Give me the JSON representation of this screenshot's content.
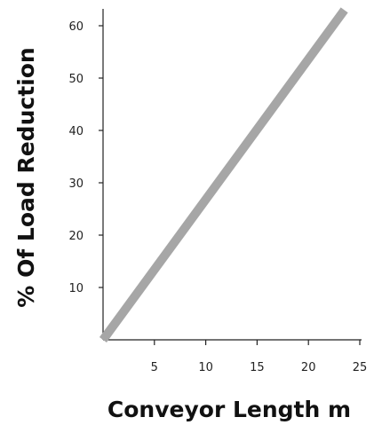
{
  "chart_data": {
    "type": "line",
    "xlabel": "Conveyor Length m",
    "ylabel": "% Of Load Reduction",
    "x_ticks": [
      5,
      10,
      15,
      20,
      25
    ],
    "y_ticks": [
      10,
      20,
      30,
      40,
      50,
      60
    ],
    "xlim": [
      0,
      25
    ],
    "ylim": [
      0,
      60
    ],
    "grid": false,
    "series": [
      {
        "x": [
          0,
          23.5
        ],
        "y": [
          0,
          63
        ],
        "color": "#a6a6a6"
      }
    ]
  }
}
